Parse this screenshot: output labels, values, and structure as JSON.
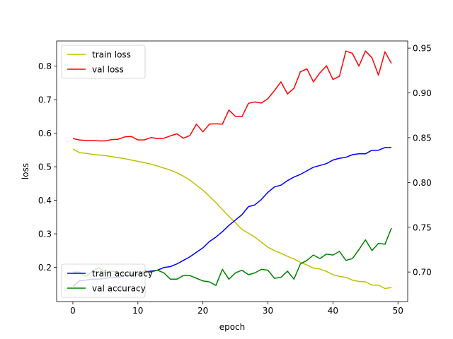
{
  "chart_data": {
    "type": "line",
    "xlabel": "epoch",
    "ylabel": "loss",
    "xlim": [
      -2.5,
      51.5
    ],
    "ylim": [
      0.098,
      0.875
    ],
    "y2lim": [
      0.667,
      0.958
    ],
    "x_ticks": [
      0,
      10,
      20,
      30,
      40,
      50
    ],
    "y_ticks": [
      0.2,
      0.3,
      0.4,
      0.5,
      0.6,
      0.7,
      0.8
    ],
    "y2_ticks": [
      0.7,
      0.75,
      0.8,
      0.85,
      0.9,
      0.95
    ],
    "x_tick_labels": [
      "0",
      "10",
      "20",
      "30",
      "40",
      "50"
    ],
    "y_tick_labels": [
      "0.2",
      "0.3",
      "0.4",
      "0.5",
      "0.6",
      "0.7",
      "0.8"
    ],
    "y2_tick_labels": [
      "0.70",
      "0.75",
      "0.80",
      "0.85",
      "0.90",
      "0.95"
    ],
    "legends": [
      {
        "placement": "top-left",
        "axis": "left",
        "entries": [
          0,
          1
        ]
      },
      {
        "placement": "bottom-left",
        "axis": "right",
        "entries": [
          2,
          3
        ]
      }
    ],
    "x": [
      0,
      1,
      2,
      3,
      4,
      5,
      6,
      7,
      8,
      9,
      10,
      11,
      12,
      13,
      14,
      15,
      16,
      17,
      18,
      19,
      20,
      21,
      22,
      23,
      24,
      25,
      26,
      27,
      28,
      29,
      30,
      31,
      32,
      33,
      34,
      35,
      36,
      37,
      38,
      39,
      40,
      41,
      42,
      43,
      44,
      45,
      46,
      47,
      48,
      49
    ],
    "series": [
      {
        "name": "train loss",
        "axis": "left",
        "color": "#bfbf00",
        "values": [
          0.553,
          0.542,
          0.54,
          0.537,
          0.535,
          0.533,
          0.53,
          0.527,
          0.524,
          0.52,
          0.516,
          0.512,
          0.508,
          0.502,
          0.496,
          0.49,
          0.482,
          0.472,
          0.46,
          0.445,
          0.43,
          0.412,
          0.393,
          0.372,
          0.352,
          0.333,
          0.313,
          0.302,
          0.29,
          0.275,
          0.26,
          0.25,
          0.242,
          0.233,
          0.225,
          0.215,
          0.207,
          0.198,
          0.195,
          0.188,
          0.178,
          0.173,
          0.17,
          0.162,
          0.158,
          0.157,
          0.147,
          0.147,
          0.137,
          0.14
        ]
      },
      {
        "name": "val loss",
        "axis": "left",
        "color": "#ff0000",
        "values": [
          0.584,
          0.58,
          0.578,
          0.578,
          0.577,
          0.577,
          0.581,
          0.582,
          0.589,
          0.59,
          0.58,
          0.58,
          0.587,
          0.584,
          0.585,
          0.592,
          0.598,
          0.585,
          0.593,
          0.627,
          0.604,
          0.627,
          0.628,
          0.627,
          0.669,
          0.65,
          0.649,
          0.689,
          0.693,
          0.69,
          0.703,
          0.727,
          0.753,
          0.717,
          0.734,
          0.783,
          0.792,
          0.753,
          0.78,
          0.801,
          0.76,
          0.77,
          0.845,
          0.838,
          0.8,
          0.845,
          0.825,
          0.773,
          0.843,
          0.808
        ]
      },
      {
        "name": "train accuracy",
        "axis": "right",
        "color": "#0000ff",
        "values": [
          0.684,
          0.69,
          0.691,
          0.692,
          0.692,
          0.693,
          0.694,
          0.694,
          0.696,
          0.697,
          0.698,
          0.7,
          0.701,
          0.702,
          0.705,
          0.706,
          0.709,
          0.713,
          0.717,
          0.722,
          0.727,
          0.734,
          0.739,
          0.745,
          0.752,
          0.758,
          0.764,
          0.773,
          0.775,
          0.781,
          0.789,
          0.795,
          0.797,
          0.802,
          0.806,
          0.809,
          0.813,
          0.817,
          0.819,
          0.821,
          0.825,
          0.827,
          0.828,
          0.831,
          0.832,
          0.832,
          0.836,
          0.836,
          0.839,
          0.839
        ]
      },
      {
        "name": "val accuracy",
        "axis": "right",
        "color": "#008000",
        "values": [
          0.7,
          0.7,
          0.695,
          0.701,
          0.705,
          0.699,
          0.701,
          0.7,
          0.698,
          0.695,
          0.698,
          0.701,
          0.7,
          0.702,
          0.699,
          0.692,
          0.692,
          0.696,
          0.696,
          0.693,
          0.69,
          0.689,
          0.685,
          0.703,
          0.692,
          0.699,
          0.702,
          0.697,
          0.699,
          0.703,
          0.702,
          0.693,
          0.694,
          0.701,
          0.692,
          0.709,
          0.713,
          0.719,
          0.715,
          0.72,
          0.719,
          0.723,
          0.713,
          0.715,
          0.725,
          0.736,
          0.724,
          0.732,
          0.731,
          0.749
        ]
      }
    ]
  }
}
